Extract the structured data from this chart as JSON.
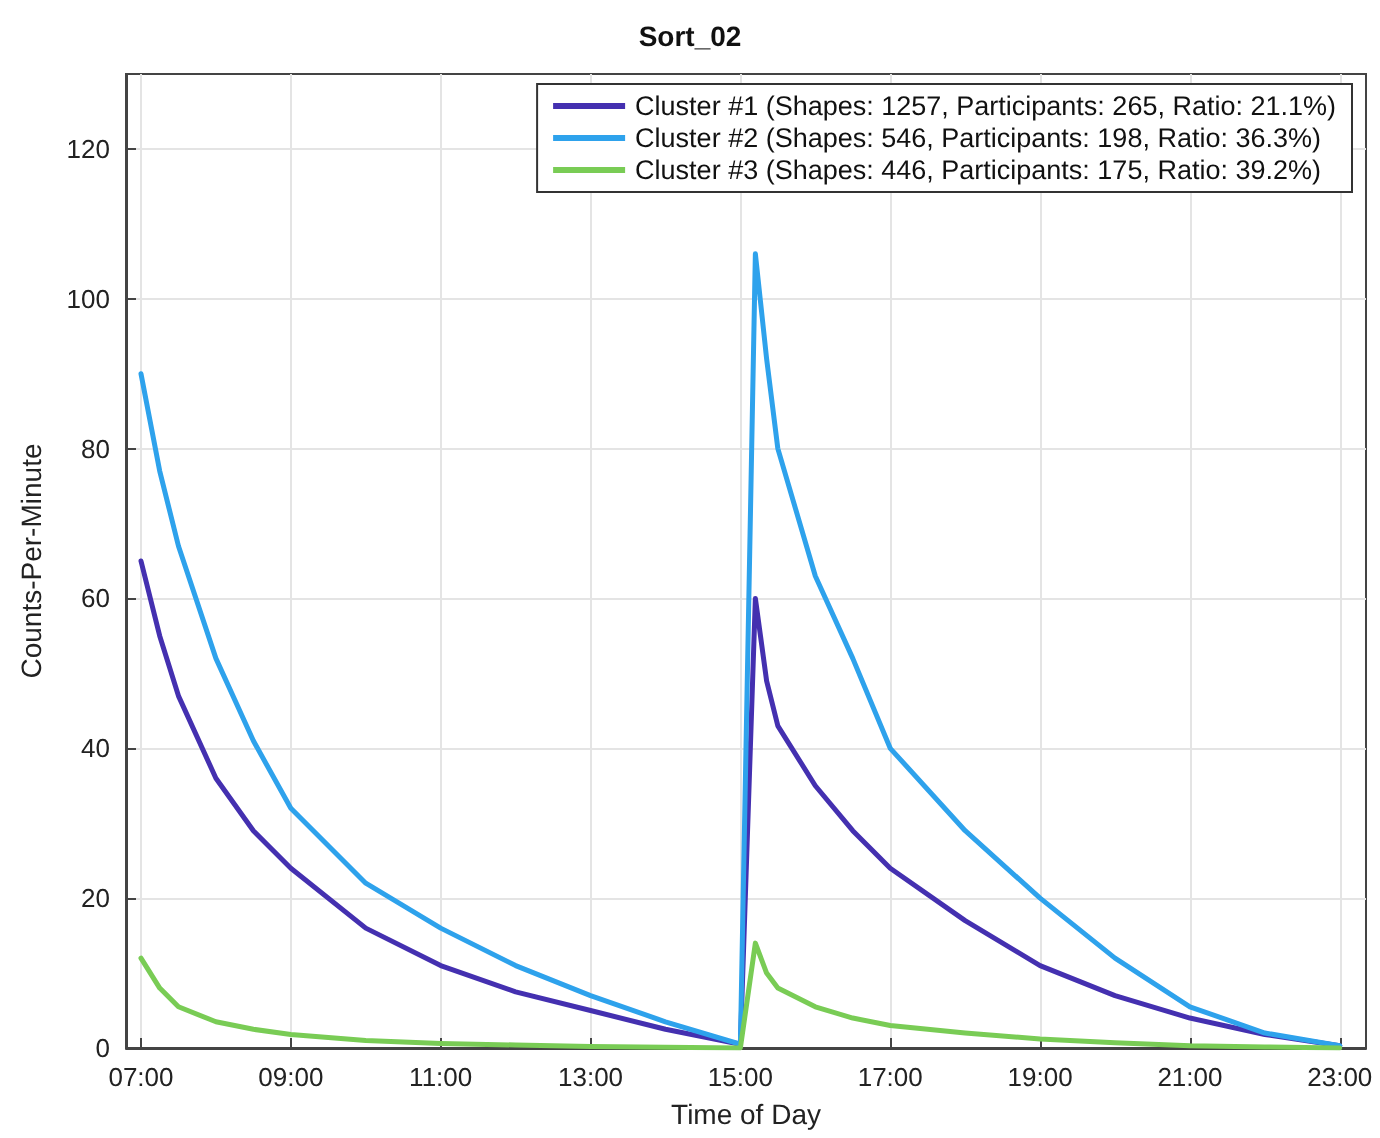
{
  "chart_data": {
    "type": "line",
    "title": "Sort_02",
    "xlabel": "Time of Day",
    "ylabel": "Counts-Per-Minute",
    "x": [
      7,
      7.25,
      7.5,
      8,
      8.5,
      9,
      10,
      11,
      12,
      13,
      14,
      15,
      15.2,
      15.35,
      15.5,
      16,
      16.5,
      17,
      18,
      19,
      20,
      21,
      22,
      23
    ],
    "series": [
      {
        "name": "Cluster #1 (Shapes: 1257, Participants: 265, Ratio: 21.1%)",
        "color": "#4430b0",
        "values": [
          65,
          55,
          47,
          36,
          29,
          24,
          16,
          11,
          7.5,
          5,
          2.5,
          0.5,
          60,
          49,
          43,
          35,
          29,
          24,
          17,
          11,
          7,
          4,
          1.8,
          0.3
        ]
      },
      {
        "name": "Cluster #2 (Shapes: 546, Participants: 198, Ratio: 36.3%)",
        "color": "#2ea2ec",
        "values": [
          90,
          77,
          67,
          52,
          41,
          32,
          22,
          16,
          11,
          7,
          3.5,
          0.5,
          106,
          92,
          80,
          63,
          52,
          40,
          29,
          20,
          12,
          5.5,
          2,
          0.3
        ]
      },
      {
        "name": "Cluster #3 (Shapes: 446, Participants: 175, Ratio: 39.2%)",
        "color": "#79cc55",
        "values": [
          12,
          8,
          5.5,
          3.5,
          2.5,
          1.8,
          1,
          0.6,
          0.4,
          0.2,
          0.1,
          0,
          14,
          10,
          8,
          5.5,
          4,
          3,
          2,
          1.2,
          0.7,
          0.3,
          0.15,
          0
        ]
      }
    ],
    "xlim": [
      6.8,
      23.35
    ],
    "xticks": [
      {
        "value": 7,
        "label": "07:00"
      },
      {
        "value": 9,
        "label": "09:00"
      },
      {
        "value": 11,
        "label": "11:00"
      },
      {
        "value": 13,
        "label": "13:00"
      },
      {
        "value": 15,
        "label": "15:00"
      },
      {
        "value": 17,
        "label": "17:00"
      },
      {
        "value": 19,
        "label": "19:00"
      },
      {
        "value": 21,
        "label": "21:00"
      },
      {
        "value": 23,
        "label": "23:00"
      }
    ],
    "ylim": [
      0,
      130
    ],
    "yticks": [
      0,
      20,
      40,
      60,
      80,
      100,
      120
    ],
    "grid": true,
    "legend": "top right",
    "marker": "none",
    "line_style": "solid"
  }
}
